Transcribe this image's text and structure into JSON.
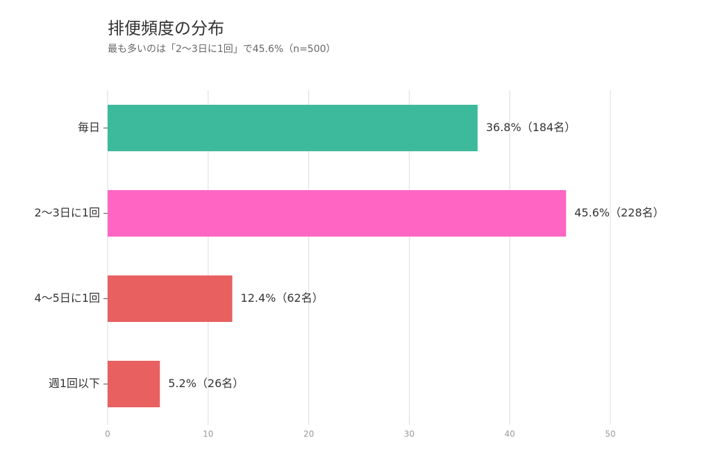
{
  "chart_data": {
    "type": "barh",
    "title": "排便頻度の分布",
    "subtitle": "最も多いのは「2〜3日に1回」で45.6%（n=500）",
    "categories": [
      "毎日",
      "2〜3日に1回",
      "4〜5日に1回",
      "週1回以下"
    ],
    "values": [
      36.8,
      45.6,
      12.4,
      5.2
    ],
    "value_labels": [
      "36.8%（184名）",
      "45.6%（228名）",
      "12.4%（62名）",
      "5.2%（26名）"
    ],
    "colors": [
      "#3dba9c",
      "#ff66c4",
      "#e86060",
      "#e86060"
    ],
    "xlim": [
      0,
      50
    ],
    "xticks": [
      0,
      10,
      20,
      30,
      40,
      50
    ],
    "grid": true
  }
}
